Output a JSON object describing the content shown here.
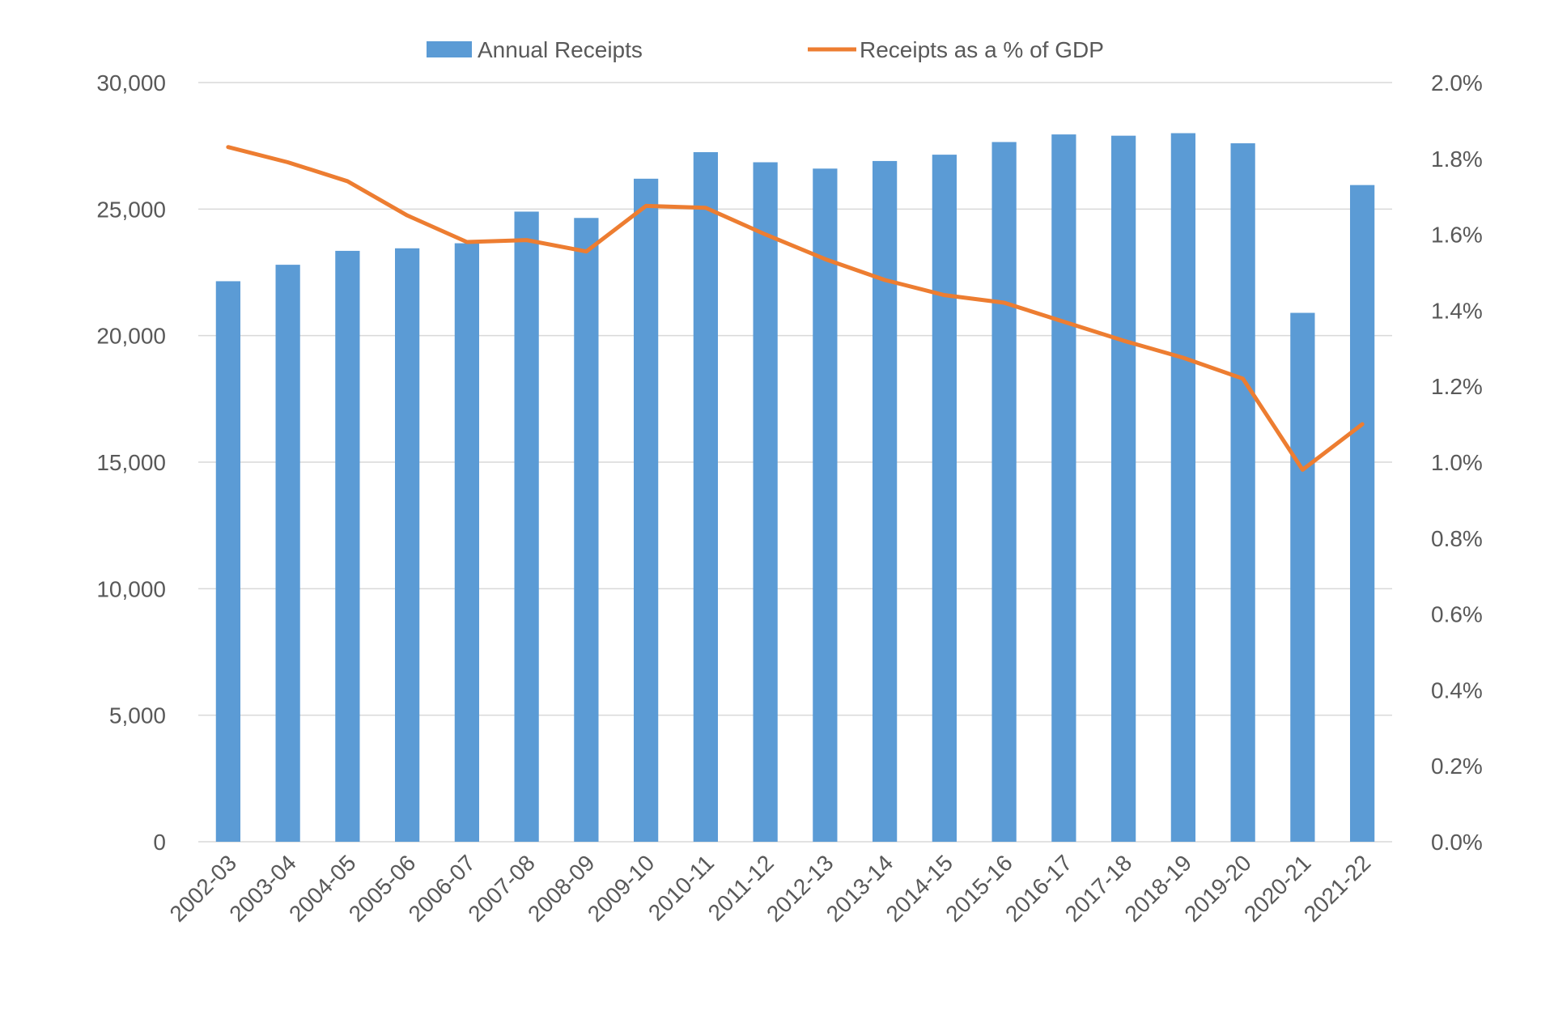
{
  "chart_data": {
    "type": "bar",
    "categories": [
      "2002-03",
      "2003-04",
      "2004-05",
      "2005-06",
      "2006-07",
      "2007-08",
      "2008-09",
      "2009-10",
      "2010-11",
      "2011-12",
      "2012-13",
      "2013-14",
      "2014-15",
      "2015-16",
      "2016-17",
      "2017-18",
      "2018-19",
      "2019-20",
      "2020-21",
      "2021-22"
    ],
    "series": [
      {
        "name": "Annual Receipts",
        "type": "bar",
        "axis": "left",
        "color": "#5b9bd5",
        "values": [
          22150,
          22800,
          23350,
          23450,
          23650,
          24900,
          24650,
          26200,
          27250,
          26850,
          26600,
          26900,
          27150,
          27650,
          27950,
          27900,
          28000,
          27600,
          20900,
          25950
        ]
      },
      {
        "name": "Receipts as a % of GDP",
        "type": "line",
        "axis": "right",
        "color": "#ed7d31",
        "values": [
          1.83,
          1.79,
          1.74,
          1.65,
          1.58,
          1.585,
          1.555,
          1.675,
          1.67,
          1.6,
          1.535,
          1.48,
          1.44,
          1.42,
          1.37,
          1.32,
          1.275,
          1.22,
          0.98,
          1.1
        ]
      }
    ],
    "y_left": {
      "min": 0,
      "max": 30000,
      "ticks": [
        0,
        5000,
        10000,
        15000,
        20000,
        25000,
        30000
      ],
      "tick_labels": [
        "0",
        "5,000",
        "10,000",
        "15,000",
        "20,000",
        "25,000",
        "30,000"
      ]
    },
    "y_right": {
      "min": 0,
      "max": 2.0,
      "ticks": [
        0,
        0.2,
        0.4,
        0.6,
        0.8,
        1.0,
        1.2,
        1.4,
        1.6,
        1.8,
        2.0
      ],
      "tick_labels": [
        "0.0%",
        "0.2%",
        "0.4%",
        "0.6%",
        "0.8%",
        "1.0%",
        "1.2%",
        "1.4%",
        "1.6%",
        "1.8%",
        "2.0%"
      ]
    },
    "grid": true,
    "legend_position": "top"
  }
}
